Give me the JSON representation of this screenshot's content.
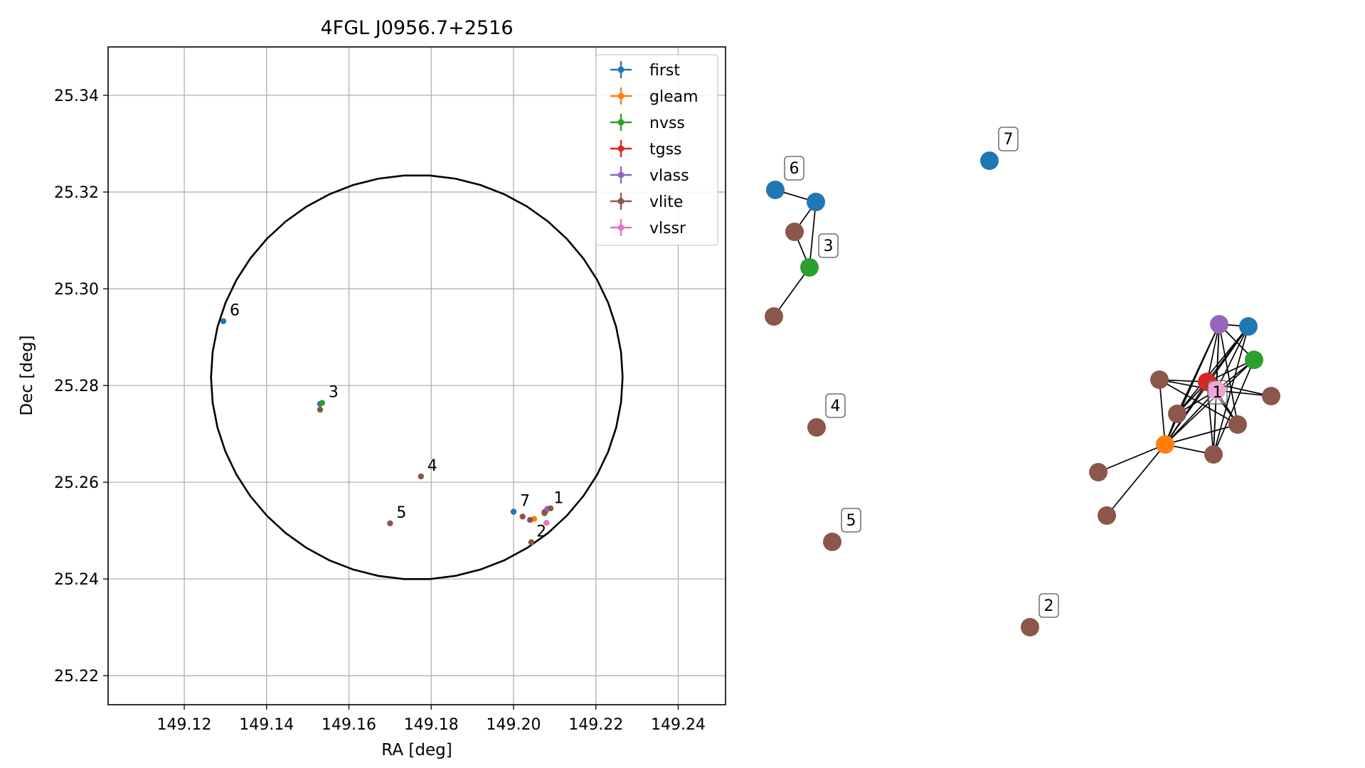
{
  "chart_data": [
    {
      "type": "scatter",
      "title": "4FGL J0956.7+2516",
      "xlabel": "RA [deg]",
      "ylabel": "Dec [deg]",
      "xlim": [
        149.1015,
        149.2515
      ],
      "ylim": [
        25.214,
        25.35
      ],
      "xticks": [
        "149.12",
        "149.14",
        "149.16",
        "149.18",
        "149.20",
        "149.22",
        "149.24"
      ],
      "yticks": [
        "25.22",
        "25.24",
        "25.26",
        "25.28",
        "25.30",
        "25.32",
        "25.34"
      ],
      "grid": true,
      "legend_position": "top-right",
      "error_ellipse": {
        "center": [
          149.1765,
          25.2817
        ],
        "ra_radius": 0.05,
        "dec_radius": 0.0418,
        "color": "#000000"
      },
      "series": [
        {
          "name": "first",
          "color": "#1f77b4",
          "points": [
            [
              149.1295,
              25.2933
            ],
            [
              149.153,
              25.2762
            ],
            [
              149.2,
              25.2539
            ]
          ]
        },
        {
          "name": "gleam",
          "color": "#ff7f0e",
          "points": [
            [
              149.205,
              25.2524
            ]
          ]
        },
        {
          "name": "nvss",
          "color": "#2ca02c",
          "points": [
            [
              149.1535,
              25.2764
            ],
            [
              149.2078,
              25.254
            ]
          ]
        },
        {
          "name": "tgss",
          "color": "#d62728",
          "points": [
            [
              149.2075,
              25.2538
            ]
          ]
        },
        {
          "name": "vlass",
          "color": "#9467bd",
          "points": [
            [
              149.2082,
              25.2545
            ]
          ]
        },
        {
          "name": "vlite",
          "color": "#8c564b",
          "points": [
            [
              149.153,
              25.275
            ],
            [
              149.1775,
              25.2612
            ],
            [
              149.17,
              25.2515
            ],
            [
              149.2022,
              25.2529
            ],
            [
              149.204,
              25.2522
            ],
            [
              149.2043,
              25.2476
            ],
            [
              149.2075,
              25.2536
            ],
            [
              149.209,
              25.2546
            ]
          ]
        },
        {
          "name": "vlssr",
          "color": "#e377c2",
          "points": [
            [
              149.208,
              25.2516
            ]
          ]
        }
      ],
      "annotations": [
        {
          "text": "1",
          "x": 149.2082,
          "y": 25.2545
        },
        {
          "text": "2",
          "x": 149.204,
          "y": 25.2476
        },
        {
          "text": "3",
          "x": 149.1535,
          "y": 25.2764
        },
        {
          "text": "4",
          "x": 149.1775,
          "y": 25.2612
        },
        {
          "text": "5",
          "x": 149.17,
          "y": 25.2515
        },
        {
          "text": "6",
          "x": 149.1295,
          "y": 25.2933
        },
        {
          "text": "7",
          "x": 149.2,
          "y": 25.2539
        }
      ]
    },
    {
      "type": "network",
      "labels": [
        "1",
        "2",
        "3",
        "4",
        "5",
        "6",
        "7"
      ],
      "nodes": [
        {
          "id": "f6",
          "survey": "first",
          "color": "#1f77b4",
          "label": "6"
        },
        {
          "id": "f3",
          "survey": "first",
          "color": "#1f77b4"
        },
        {
          "id": "v3a",
          "survey": "vlite",
          "color": "#8c564b"
        },
        {
          "id": "n3",
          "survey": "nvss",
          "color": "#2ca02c",
          "label": "3"
        },
        {
          "id": "v3b",
          "survey": "vlite",
          "color": "#8c564b"
        },
        {
          "id": "f7",
          "survey": "first",
          "color": "#1f77b4",
          "label": "7"
        },
        {
          "id": "v4",
          "survey": "vlite",
          "color": "#8c564b",
          "label": "4"
        },
        {
          "id": "v5",
          "survey": "vlite",
          "color": "#8c564b",
          "label": "5"
        },
        {
          "id": "v2",
          "survey": "vlite",
          "color": "#8c564b",
          "label": "2"
        },
        {
          "id": "vl1",
          "survey": "vlass",
          "color": "#9467bd"
        },
        {
          "id": "f1",
          "survey": "first",
          "color": "#1f77b4"
        },
        {
          "id": "n1",
          "survey": "nvss",
          "color": "#2ca02c"
        },
        {
          "id": "t1",
          "survey": "tgss",
          "color": "#d62728"
        },
        {
          "id": "vs1",
          "survey": "vlssr",
          "color": "#e377c2",
          "label": "1"
        },
        {
          "id": "va",
          "survey": "vlite",
          "color": "#8c564b"
        },
        {
          "id": "vb",
          "survey": "vlite",
          "color": "#8c564b"
        },
        {
          "id": "vc",
          "survey": "vlite",
          "color": "#8c564b"
        },
        {
          "id": "vd",
          "survey": "vlite",
          "color": "#8c564b"
        },
        {
          "id": "ve",
          "survey": "vlite",
          "color": "#8c564b"
        },
        {
          "id": "vf",
          "survey": "vlite",
          "color": "#8c564b"
        },
        {
          "id": "vg",
          "survey": "vlite",
          "color": "#8c564b"
        },
        {
          "id": "g1",
          "survey": "gleam",
          "color": "#ff7f0e"
        }
      ],
      "edges": [
        [
          "f6",
          "f3"
        ],
        [
          "f3",
          "v3a"
        ],
        [
          "f3",
          "n3"
        ],
        [
          "v3a",
          "n3"
        ],
        [
          "n3",
          "v3b"
        ],
        [
          "g1",
          "vf"
        ],
        [
          "g1",
          "vg"
        ],
        [
          "g1",
          "vb"
        ],
        [
          "g1",
          "vd"
        ],
        [
          "g1",
          "ve"
        ],
        [
          "g1",
          "va"
        ],
        [
          "g1",
          "t1"
        ],
        [
          "g1",
          "vs1"
        ],
        [
          "g1",
          "vl1"
        ],
        [
          "g1",
          "f1"
        ],
        [
          "g1",
          "n1"
        ],
        [
          "va",
          "t1"
        ],
        [
          "va",
          "vs1"
        ],
        [
          "va",
          "vd"
        ],
        [
          "vb",
          "t1"
        ],
        [
          "vb",
          "vs1"
        ],
        [
          "vb",
          "vl1"
        ],
        [
          "vb",
          "f1"
        ],
        [
          "vl1",
          "t1"
        ],
        [
          "vl1",
          "vs1"
        ],
        [
          "vl1",
          "f1"
        ],
        [
          "vl1",
          "n1"
        ],
        [
          "vl1",
          "vd"
        ],
        [
          "vl1",
          "ve"
        ],
        [
          "f1",
          "t1"
        ],
        [
          "f1",
          "vs1"
        ],
        [
          "f1",
          "ve"
        ],
        [
          "n1",
          "t1"
        ],
        [
          "n1",
          "vs1"
        ],
        [
          "n1",
          "ve"
        ],
        [
          "t1",
          "vs1"
        ],
        [
          "t1",
          "vc"
        ],
        [
          "t1",
          "ve"
        ],
        [
          "t1",
          "vd"
        ],
        [
          "vs1",
          "vc"
        ],
        [
          "vs1",
          "vd"
        ],
        [
          "vs1",
          "ve"
        ]
      ]
    }
  ]
}
